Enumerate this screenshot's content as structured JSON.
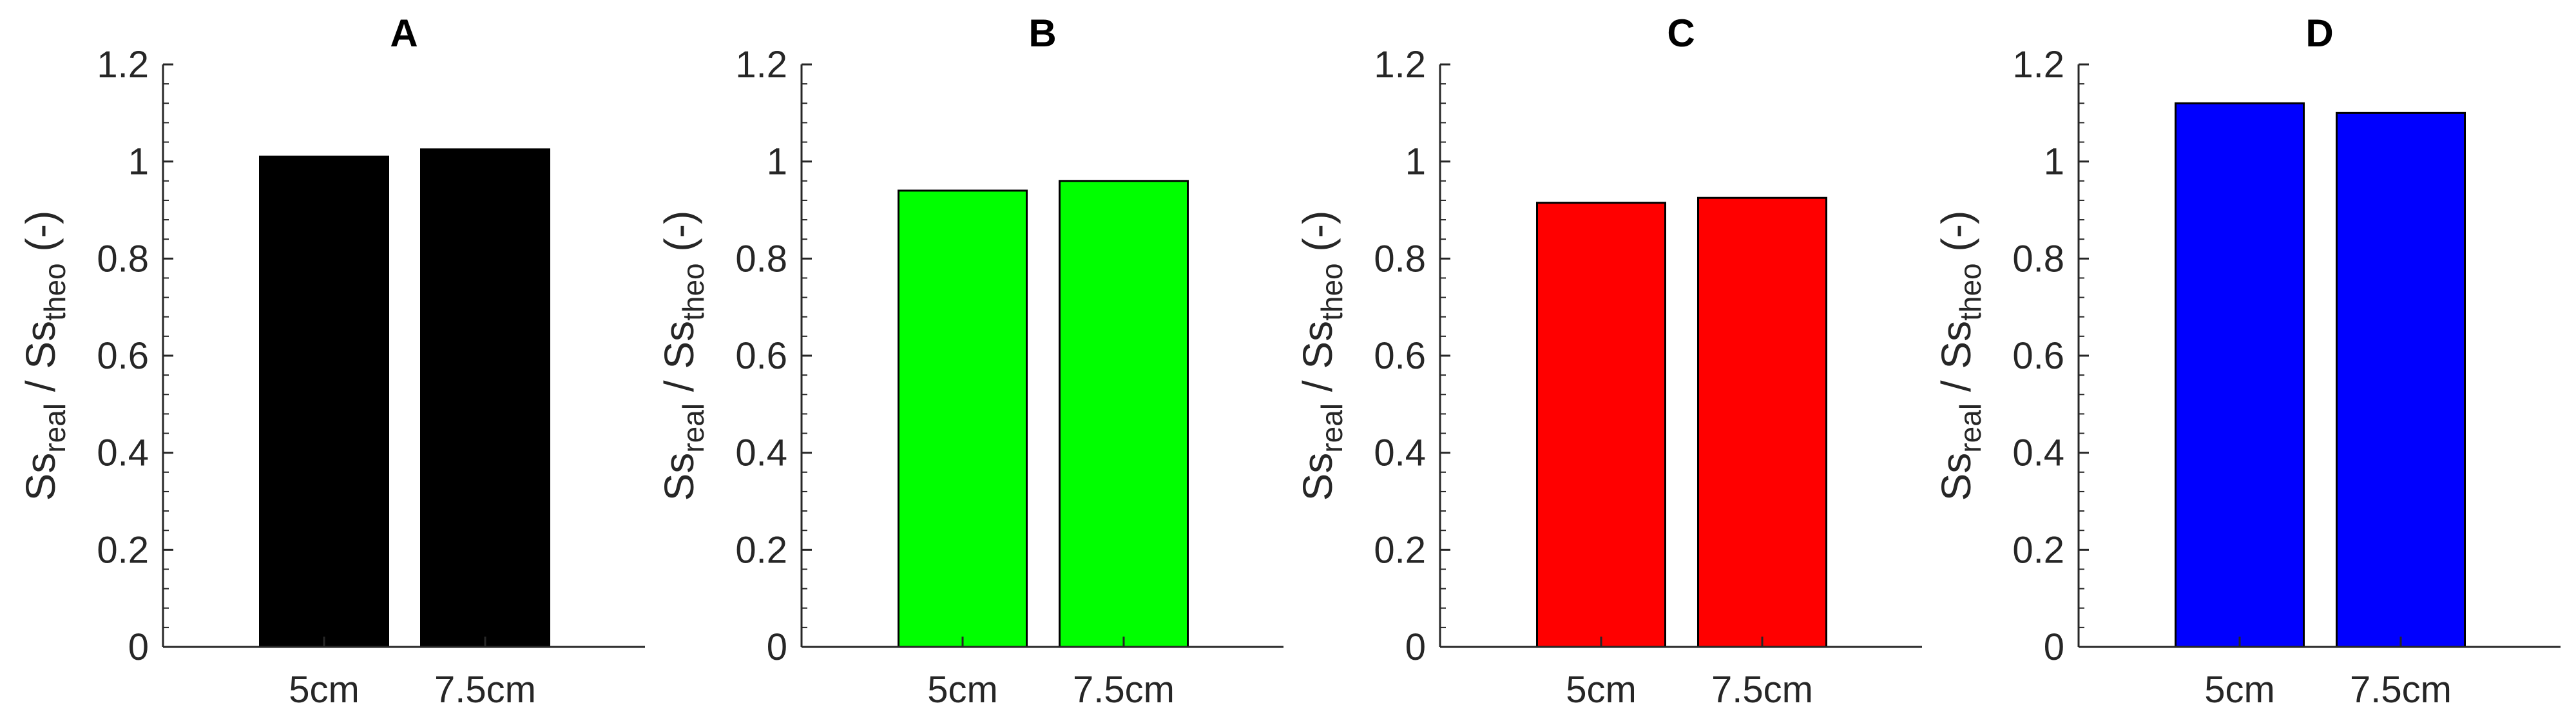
{
  "chart_data": [
    {
      "type": "bar",
      "title": "A",
      "categories": [
        "5cm",
        "7.5cm"
      ],
      "values": [
        1.01,
        1.025
      ],
      "color": "#000000",
      "xlabel": "",
      "ylabel": {
        "base1": "Ss",
        "sub1": "real",
        "mid": " / Ss",
        "sub2": "theo",
        "tail": " (-)"
      },
      "ylim": [
        0,
        1.2
      ],
      "yticks": [
        0,
        0.2,
        0.4,
        0.6,
        0.8,
        1,
        1.2
      ],
      "yticklabels": [
        "0",
        "0.2",
        "0.4",
        "0.6",
        "0.8",
        "1",
        "1.2"
      ],
      "grid": false
    },
    {
      "type": "bar",
      "title": "B",
      "categories": [
        "5cm",
        "7.5cm"
      ],
      "values": [
        0.94,
        0.96
      ],
      "color": "#00ff00",
      "xlabel": "",
      "ylabel": {
        "base1": "Ss",
        "sub1": "real",
        "mid": " / Ss",
        "sub2": "theo",
        "tail": " (-)"
      },
      "ylim": [
        0,
        1.2
      ],
      "yticks": [
        0,
        0.2,
        0.4,
        0.6,
        0.8,
        1,
        1.2
      ],
      "yticklabels": [
        "0",
        "0.2",
        "0.4",
        "0.6",
        "0.8",
        "1",
        "1.2"
      ],
      "grid": false
    },
    {
      "type": "bar",
      "title": "C",
      "categories": [
        "5cm",
        "7.5cm"
      ],
      "values": [
        0.915,
        0.925
      ],
      "color": "#ff0000",
      "xlabel": "",
      "ylabel": {
        "base1": "Ss",
        "sub1": "real",
        "mid": " / Ss",
        "sub2": "theo",
        "tail": " (-)"
      },
      "ylim": [
        0,
        1.2
      ],
      "yticks": [
        0,
        0.2,
        0.4,
        0.6,
        0.8,
        1,
        1.2
      ],
      "yticklabels": [
        "0",
        "0.2",
        "0.4",
        "0.6",
        "0.8",
        "1",
        "1.2"
      ],
      "grid": false
    },
    {
      "type": "bar",
      "title": "D",
      "categories": [
        "5cm",
        "7.5cm"
      ],
      "values": [
        1.12,
        1.1
      ],
      "color": "#0000ff",
      "xlabel": "",
      "ylabel": {
        "base1": "Ss",
        "sub1": "real",
        "mid": " / Ss",
        "sub2": "theo",
        "tail": " (-)"
      },
      "ylim": [
        0,
        1.2
      ],
      "yticks": [
        0,
        0.2,
        0.4,
        0.6,
        0.8,
        1,
        1.2
      ],
      "yticklabels": [
        "0",
        "0.2",
        "0.4",
        "0.6",
        "0.8",
        "1",
        "1.2"
      ],
      "grid": false
    }
  ]
}
